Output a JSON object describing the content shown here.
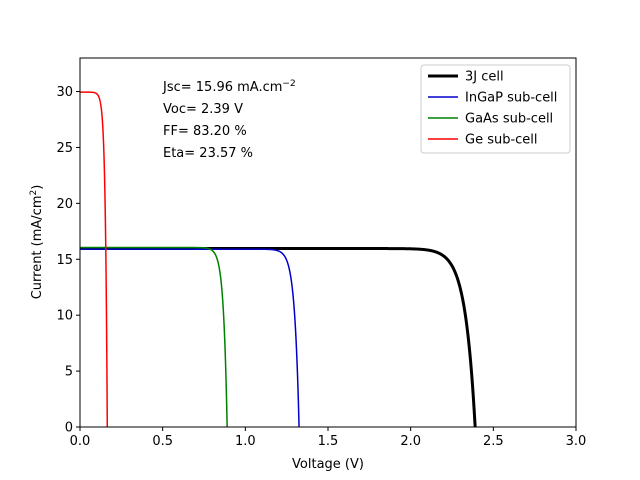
{
  "chart_data": {
    "type": "line",
    "xlabel": "Voltage (V)",
    "ylabel_main": "Current (mA/cm",
    "ylabel_sup": "2",
    "ylabel_close": ")",
    "xlim": [
      0,
      3.0
    ],
    "ylim": [
      0,
      33
    ],
    "xticks": [
      0.0,
      0.5,
      1.0,
      1.5,
      2.0,
      2.5,
      3.0
    ],
    "xtick_labels": [
      "0.0",
      "0.5",
      "1.0",
      "1.5",
      "2.0",
      "2.5",
      "3.0"
    ],
    "yticks": [
      0,
      5,
      10,
      15,
      20,
      25,
      30
    ],
    "ytick_labels": [
      "0",
      "5",
      "10",
      "15",
      "20",
      "25",
      "30"
    ],
    "grid": false,
    "legend_position": "top-right",
    "series": [
      {
        "name": "3J cell",
        "color": "#000000",
        "isc": 15.96,
        "voc": 2.39,
        "n": 0.06,
        "width": 3
      },
      {
        "name": "InGaP sub-cell",
        "color": "#0000cc",
        "isc": 15.9,
        "voc": 1.325,
        "n": 0.027,
        "width": 1.5
      },
      {
        "name": "GaAs sub-cell",
        "color": "#008000",
        "isc": 16.05,
        "voc": 0.89,
        "n": 0.022,
        "width": 1.5
      },
      {
        "name": "Ge sub-cell",
        "color": "#ff0000",
        "isc": 29.95,
        "voc": 0.165,
        "n": 0.012,
        "width": 1.5
      }
    ],
    "annotations": [
      {
        "main": "Jsc= 15.96 mA.cm",
        "sup": "−2"
      },
      {
        "main": "Voc= 2.39 V",
        "sup": ""
      },
      {
        "main": "FF= 83.20 %",
        "sup": ""
      },
      {
        "main": "Eta= 23.57 %",
        "sup": ""
      }
    ]
  }
}
